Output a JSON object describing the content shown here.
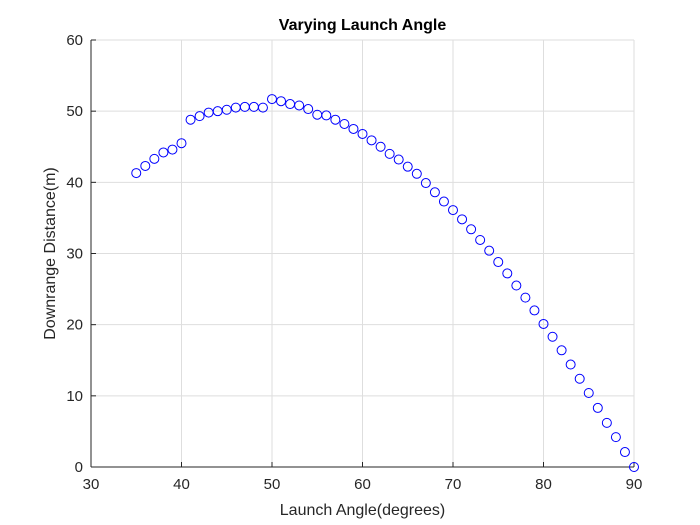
{
  "chart_data": {
    "type": "scatter",
    "title": "Varying Launch Angle",
    "xlabel": "Launch Angle(degrees)",
    "ylabel": "Downrange Distance(m)",
    "xlim": [
      30,
      90
    ],
    "ylim": [
      0,
      60
    ],
    "xticks": [
      30,
      40,
      50,
      60,
      70,
      80,
      90
    ],
    "yticks": [
      0,
      10,
      20,
      30,
      40,
      50,
      60
    ],
    "grid": true,
    "marker": "circle",
    "color": "#0000ff",
    "x": [
      35,
      36,
      37,
      38,
      39,
      40,
      41,
      42,
      43,
      44,
      45,
      46,
      47,
      48,
      49,
      50,
      51,
      52,
      53,
      54,
      55,
      56,
      57,
      58,
      59,
      60,
      61,
      62,
      63,
      64,
      65,
      66,
      67,
      68,
      69,
      70,
      71,
      72,
      73,
      74,
      75,
      76,
      77,
      78,
      79,
      80,
      81,
      82,
      83,
      84,
      85,
      86,
      87,
      88,
      89,
      90
    ],
    "y": [
      41.3,
      42.3,
      43.3,
      44.2,
      44.6,
      45.5,
      48.8,
      49.3,
      49.8,
      50.0,
      50.2,
      50.5,
      50.6,
      50.6,
      50.5,
      51.7,
      51.4,
      51.0,
      50.8,
      50.3,
      49.5,
      49.4,
      48.8,
      48.2,
      47.5,
      46.8,
      45.9,
      45.0,
      44.0,
      43.2,
      42.2,
      41.2,
      39.9,
      38.6,
      37.3,
      36.1,
      34.8,
      33.4,
      31.9,
      30.4,
      28.8,
      27.2,
      25.5,
      23.8,
      22.0,
      20.1,
      18.3,
      16.4,
      14.4,
      12.4,
      10.4,
      8.3,
      6.2,
      4.2,
      2.1,
      0.0
    ]
  }
}
